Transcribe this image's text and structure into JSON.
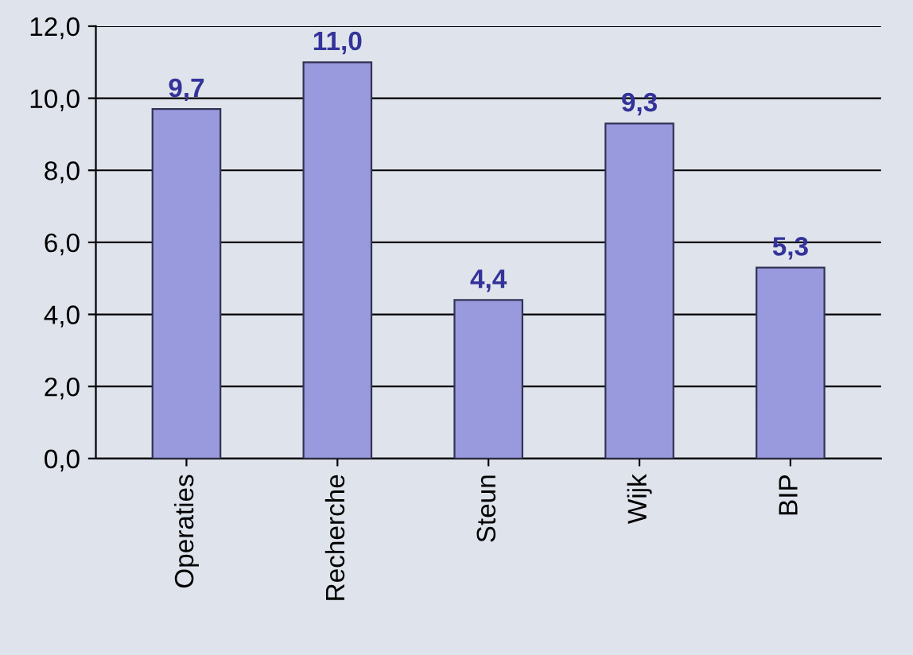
{
  "chart_data": {
    "type": "bar",
    "categories": [
      "Operaties",
      "Recherche",
      "Steun",
      "Wijk",
      "BIP"
    ],
    "values": [
      9.7,
      11.0,
      4.4,
      9.3,
      5.3
    ],
    "value_labels": [
      "9,7",
      "11,0",
      "4,4",
      "9,3",
      "5,3"
    ],
    "color": "#9999dd",
    "ylim": [
      0,
      12
    ],
    "yticks": [
      {
        "value": 0,
        "label": "0,0"
      },
      {
        "value": 2,
        "label": "2,0"
      },
      {
        "value": 4,
        "label": "4,0"
      },
      {
        "value": 6,
        "label": "6,0"
      },
      {
        "value": 8,
        "label": "8,0"
      },
      {
        "value": 10,
        "label": "10,0"
      },
      {
        "value": 12,
        "label": "12,0"
      }
    ],
    "grid": "y"
  }
}
